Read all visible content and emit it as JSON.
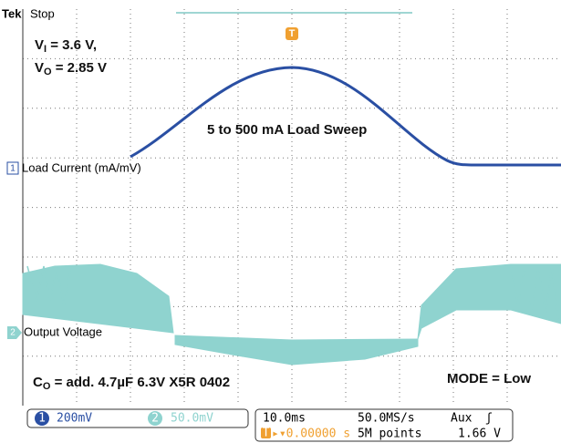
{
  "header": {
    "brand": "Tek",
    "status": "Stop"
  },
  "annotations": {
    "vi": {
      "symbol": "V",
      "sub": "I",
      "text": " = 3.6 V,"
    },
    "vo": {
      "symbol": "V",
      "sub": "O",
      "text": " = 2.85 V"
    },
    "sweep": "5 to 500 mA Load Sweep",
    "co": {
      "symbol": "C",
      "sub": "O",
      "text": " = add. 4.7µF 6.3V X5R 0402"
    },
    "mode": "MODE = Low"
  },
  "channels": [
    {
      "marker": "1",
      "label": "Load Current (mA/mV)",
      "scale": "200mV"
    },
    {
      "marker": "2",
      "label": "Output Voltage",
      "scale": "50.0mV"
    }
  ],
  "trigger": {
    "marker": "T",
    "source": "Aux",
    "slope": "ʃ",
    "position": "▸▾0.00000 s",
    "level": "1.66 V"
  },
  "timebase": {
    "scale": "10.0ms",
    "rate": "50.0MS/s",
    "points": "5M points"
  }
}
